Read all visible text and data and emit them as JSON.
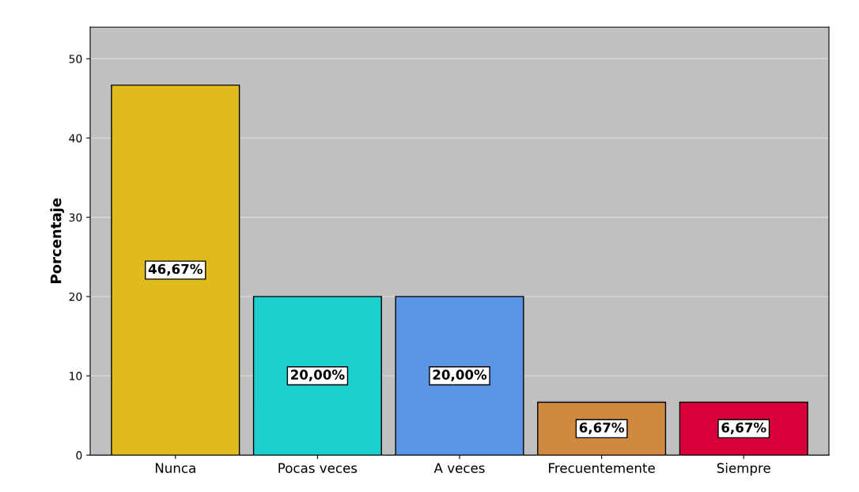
{
  "chart_data": {
    "type": "bar",
    "ylabel": "Porcentaje",
    "categories": [
      "Nunca",
      "Pocas veces",
      "A veces",
      "Frecuentemente",
      "Siempre"
    ],
    "values": [
      46.67,
      20.0,
      20.0,
      6.67,
      6.67
    ],
    "colors": [
      "#e0bb1e",
      "#1ecfcf",
      "#5b96e6",
      "#d08a40",
      "#d8003a"
    ],
    "value_labels": [
      "46,67%",
      "20,00%",
      "20,00%",
      "6,67%",
      "6,67%"
    ],
    "ylim": [
      0,
      54
    ],
    "yticks": [
      0,
      10,
      20,
      30,
      40,
      50
    ],
    "grid": "y",
    "legend": false
  }
}
